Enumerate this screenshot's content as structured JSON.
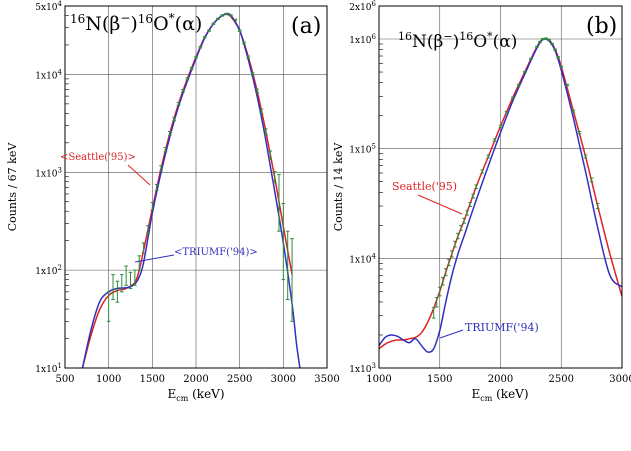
{
  "chart_data": [
    {
      "panel_label": "(a)",
      "type": "line",
      "title": "16N(β−)16O*(α)",
      "title_parts": {
        "pre": "16",
        "a": "N(β",
        "minus": "−",
        "b": ")",
        "mid": "16",
        "c": "O",
        "star": "*",
        "d": "(α)"
      },
      "xlabel": {
        "main": "E",
        "sub": "cm",
        "rest": " (keV)"
      },
      "ylabel": "Counts / 67 keV",
      "xlim": [
        500,
        3500
      ],
      "ylim": [
        10,
        50000
      ],
      "yscale": "log",
      "grid": true,
      "x_ticks": [
        500,
        1000,
        1500,
        2000,
        2500,
        3000,
        3500
      ],
      "x_tick_labels": [
        "500",
        "1000",
        "1500",
        "2000",
        "2500",
        "3000",
        "3500"
      ],
      "y_ticks": [
        10,
        100,
        1000,
        10000,
        50000
      ],
      "y_tick_labels": [
        {
          "m": "1x10",
          "e": "1"
        },
        {
          "m": "1x10",
          "e": "2"
        },
        {
          "m": "1x10",
          "e": "3"
        },
        {
          "m": "1x10",
          "e": "4"
        },
        {
          "m": "5x10",
          "e": "4"
        }
      ],
      "series": [
        {
          "name": "Seattle('95)",
          "color": "#dd2222",
          "x": [
            700,
            800,
            900,
            1000,
            1100,
            1200,
            1300,
            1350,
            1400,
            1500,
            1600,
            1700,
            1800,
            1900,
            2000,
            2100,
            2200,
            2300,
            2350,
            2400,
            2500,
            2600,
            2700,
            2800,
            2900,
            3000,
            3100
          ],
          "y": [
            10,
            22,
            40,
            55,
            62,
            65,
            75,
            100,
            160,
            420,
            1100,
            2500,
            5000,
            9000,
            15000,
            24000,
            33000,
            40000,
            41000,
            39000,
            28000,
            15000,
            6800,
            2600,
            900,
            280,
            90
          ]
        },
        {
          "name": "TRIUMF('94)",
          "color": "#3030c0",
          "x": [
            700,
            800,
            900,
            1000,
            1100,
            1200,
            1250,
            1300,
            1350,
            1400,
            1500,
            1600,
            1700,
            1800,
            1900,
            2000,
            2100,
            2200,
            2300,
            2350,
            2400,
            2500,
            2600,
            2700,
            2800,
            2900,
            3000,
            3100,
            3150,
            3190
          ],
          "y": [
            10,
            25,
            48,
            60,
            65,
            66,
            68,
            72,
            85,
            120,
            380,
            1000,
            2300,
            4700,
            8500,
            14500,
            23500,
            33000,
            40000,
            41500,
            40000,
            28000,
            14000,
            6000,
            2100,
            650,
            190,
            45,
            18,
            10
          ]
        }
      ],
      "data_points": {
        "name": "data",
        "color": "#2e8b3a",
        "x": [
          1000,
          1050,
          1100,
          1150,
          1200,
          1250,
          1300,
          1350,
          1400,
          1450,
          1500,
          1550,
          1600,
          1650,
          1700,
          1750,
          1800,
          1850,
          1900,
          1950,
          2000,
          2050,
          2100,
          2150,
          2200,
          2250,
          2300,
          2350,
          2400,
          2450,
          2500,
          2550,
          2600,
          2650,
          2700,
          2750,
          2800,
          2850,
          2900,
          2950,
          3000,
          3050,
          3100
        ],
        "y": [
          45,
          70,
          62,
          75,
          90,
          80,
          85,
          120,
          170,
          260,
          450,
          700,
          1100,
          1700,
          2500,
          3500,
          5000,
          6800,
          9000,
          11500,
          15000,
          19000,
          24000,
          28000,
          33000,
          37000,
          40000,
          41500,
          40000,
          36000,
          28000,
          21000,
          15000,
          10000,
          6800,
          4200,
          2600,
          1500,
          900,
          600,
          280,
          150,
          120
        ],
        "err": [
          15,
          20,
          15,
          15,
          20,
          15,
          15,
          20,
          20,
          25,
          40,
          50,
          70,
          90,
          110,
          140,
          170,
          200,
          230,
          270,
          300,
          350,
          400,
          450,
          500,
          550,
          600,
          650,
          600,
          550,
          500,
          450,
          400,
          350,
          280,
          220,
          180,
          150,
          120,
          350,
          200,
          100,
          90
        ]
      },
      "legend_labels": {
        "seattle": "<Seattle('95)>",
        "triumf": "<TRIUMF('94)>"
      }
    },
    {
      "panel_label": "(b)",
      "type": "line",
      "title": "16N(β−)16O*(α)",
      "title_parts": {
        "pre": "16",
        "a": "N(β",
        "minus": "−",
        "b": ")",
        "mid": "16",
        "c": "O",
        "star": "*",
        "d": "(α)"
      },
      "xlabel": {
        "main": "E",
        "sub": "cm",
        "rest": " (keV)"
      },
      "ylabel": "Counts / 14 keV",
      "xlim": [
        1000,
        3000
      ],
      "ylim": [
        1000,
        2000000
      ],
      "yscale": "log",
      "grid": true,
      "x_ticks": [
        1000,
        1500,
        2000,
        2500,
        3000
      ],
      "x_tick_labels": [
        "1000",
        "1500",
        "2000",
        "2500",
        "3000"
      ],
      "y_ticks": [
        1000,
        10000,
        100000,
        1000000,
        2000000
      ],
      "y_tick_labels": [
        {
          "m": "1x10",
          "e": "3"
        },
        {
          "m": "1x10",
          "e": "4"
        },
        {
          "m": "1x10",
          "e": "5"
        },
        {
          "m": "1x10",
          "e": "6"
        },
        {
          "m": "2x10",
          "e": "6"
        }
      ],
      "series": [
        {
          "name": "Seattle('95)",
          "color": "#dd2222",
          "x": [
            1000,
            1050,
            1100,
            1150,
            1200,
            1250,
            1300,
            1350,
            1400,
            1450,
            1500,
            1550,
            1600,
            1650,
            1700,
            1800,
            1900,
            2000,
            2100,
            2200,
            2300,
            2350,
            2400,
            2450,
            2500,
            2600,
            2700,
            2800,
            2900,
            3000
          ],
          "y": [
            1500,
            1650,
            1750,
            1800,
            1800,
            1850,
            1900,
            2100,
            2600,
            3500,
            5000,
            7500,
            11000,
            16000,
            22000,
            45000,
            85000,
            160000,
            290000,
            500000,
            850000,
            1000000,
            980000,
            800000,
            560000,
            220000,
            85000,
            30000,
            11000,
            4500
          ]
        },
        {
          "name": "TRIUMF('94)",
          "color": "#3030c0",
          "x": [
            1000,
            1050,
            1100,
            1150,
            1200,
            1250,
            1300,
            1350,
            1400,
            1450,
            1500,
            1550,
            1600,
            1650,
            1700,
            1800,
            1900,
            2000,
            2100,
            2200,
            2300,
            2350,
            2400,
            2450,
            2500,
            2600,
            2700,
            2800,
            2900,
            3000
          ],
          "y": [
            1600,
            1900,
            2000,
            1950,
            1800,
            1700,
            1850,
            1600,
            1400,
            1500,
            2200,
            4000,
            7000,
            11000,
            16000,
            34000,
            70000,
            140000,
            270000,
            480000,
            830000,
            990000,
            960000,
            780000,
            520000,
            190000,
            62000,
            19000,
            7000,
            5500
          ]
        }
      ],
      "data_points": {
        "name": "data",
        "color": "#2e8b3a",
        "x": [
          1450,
          1475,
          1500,
          1525,
          1550,
          1575,
          1600,
          1625,
          1650,
          1675,
          1700,
          1725,
          1750,
          1775,
          1800,
          1850,
          1900,
          1950,
          2000,
          2050,
          2100,
          2150,
          2200,
          2250,
          2300,
          2325,
          2350,
          2375,
          2400,
          2425,
          2450,
          2475,
          2500,
          2550,
          2600,
          2650,
          2700,
          2750,
          2800
        ],
        "y": [
          3200,
          4000,
          5000,
          6200,
          7500,
          9200,
          11000,
          13500,
          16000,
          19000,
          22000,
          26000,
          31000,
          37000,
          45000,
          62000,
          85000,
          120000,
          160000,
          215000,
          290000,
          380000,
          500000,
          660000,
          850000,
          940000,
          1000000,
          1010000,
          980000,
          900000,
          800000,
          680000,
          560000,
          380000,
          220000,
          140000,
          85000,
          52000,
          30000
        ],
        "err": [
          350,
          400,
          450,
          500,
          550,
          600,
          700,
          800,
          900,
          1000,
          1100,
          1200,
          1300,
          1500,
          1700,
          2000,
          2500,
          3000,
          3500,
          4000,
          5000,
          6000,
          7000,
          8000,
          10000,
          11000,
          12000,
          12000,
          12000,
          11000,
          10000,
          9000,
          8000,
          6000,
          4500,
          3500,
          2500,
          2000,
          1600
        ]
      },
      "legend_labels": {
        "seattle": "Seattle('95)",
        "triumf": "TRIUMF('94)"
      }
    }
  ]
}
